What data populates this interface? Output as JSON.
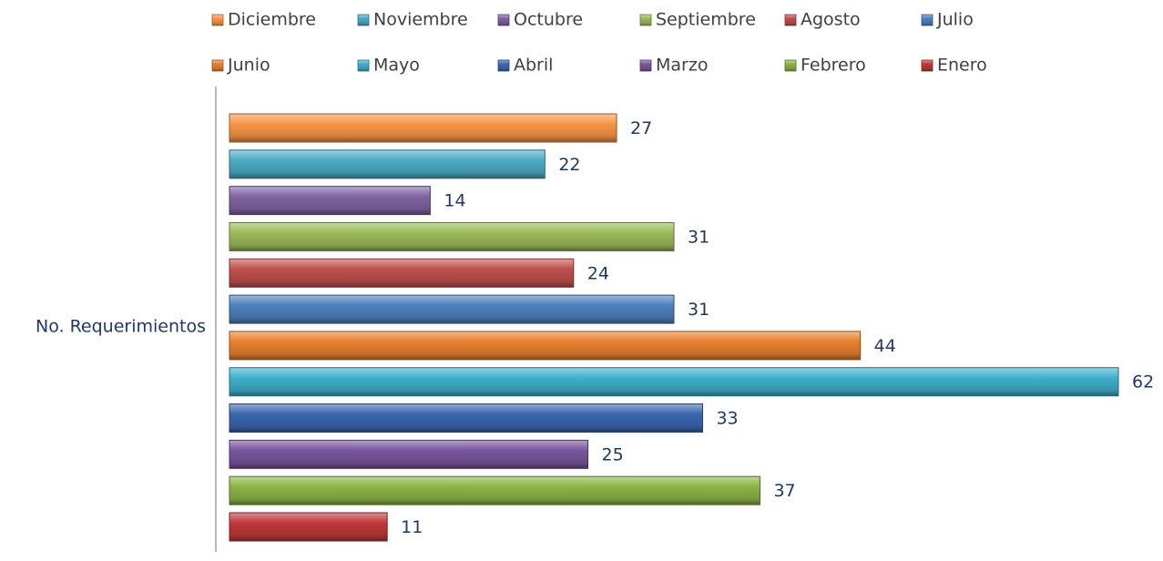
{
  "chart_data": {
    "type": "bar",
    "orientation": "horizontal",
    "categories": [
      "No. Requerimientos"
    ],
    "series": [
      {
        "name": "Diciembre",
        "color": "#f79646",
        "values": [
          27
        ]
      },
      {
        "name": "Noviembre",
        "color": "#4bacc6",
        "values": [
          22
        ]
      },
      {
        "name": "Octubre",
        "color": "#8064a2",
        "values": [
          14
        ]
      },
      {
        "name": "Septiembre",
        "color": "#9bbb59",
        "values": [
          31
        ]
      },
      {
        "name": "Agosto",
        "color": "#c0504d",
        "values": [
          24
        ]
      },
      {
        "name": "Julio",
        "color": "#4f81bd",
        "values": [
          31
        ]
      },
      {
        "name": "Junio",
        "color": "#e8812f",
        "values": [
          44
        ]
      },
      {
        "name": "Mayo",
        "color": "#3fb0cc",
        "values": [
          62
        ]
      },
      {
        "name": "Abril",
        "color": "#3c68b0",
        "values": [
          33
        ]
      },
      {
        "name": "Marzo",
        "color": "#7a559e",
        "values": [
          25
        ]
      },
      {
        "name": "Febrero",
        "color": "#8cb545",
        "values": [
          37
        ]
      },
      {
        "name": "Enero",
        "color": "#c0393b",
        "values": [
          11
        ]
      }
    ],
    "legend": "top"
  }
}
